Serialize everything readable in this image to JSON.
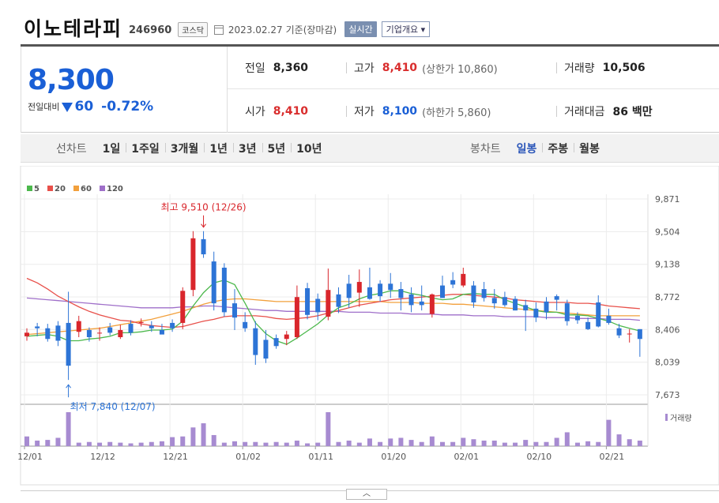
{
  "header": {
    "name": "이노테라피",
    "code": "246960",
    "market": "코스닥",
    "date": "2023.02.27",
    "basis": "기준(장마감)",
    "realtime_label": "실시간",
    "company_label": "기업개요"
  },
  "quote": {
    "price": "8,300",
    "change_label": "전일대비",
    "change": "60",
    "change_pct": "-0.72%",
    "prev_close_label": "전일",
    "prev_close": "8,360",
    "high_label": "고가",
    "high": "8,410",
    "upper_limit_label": "(상한가 10,860)",
    "volume_label": "거래량",
    "volume": "10,506",
    "open_label": "시가",
    "open": "8,410",
    "low_label": "저가",
    "low": "8,100",
    "lower_limit_label": "(하한가 5,860)",
    "amount_label": "거래대금",
    "amount": "86 백만"
  },
  "tabs": {
    "line_label": "선차트",
    "line_items": [
      "1일",
      "1주일",
      "3개월",
      "1년",
      "3년",
      "5년",
      "10년"
    ],
    "candle_label": "봉차트",
    "candle_items": [
      "일봉",
      "주봉",
      "월봉"
    ],
    "candle_selected": 0
  },
  "chart_data": {
    "type": "candlestick",
    "legend": [
      {
        "name": "5",
        "color": "#4cb84c"
      },
      {
        "name": "20",
        "color": "#e8504a"
      },
      {
        "name": "60",
        "color": "#f2a03c"
      },
      {
        "name": "120",
        "color": "#9f6fc9"
      }
    ],
    "y_ticks": [
      "9,871",
      "9,504",
      "9,138",
      "8,772",
      "8,406",
      "8,039",
      "7,673"
    ],
    "ylim": [
      7673,
      9871
    ],
    "x_ticks": [
      {
        "label": "12/01",
        "index": 0
      },
      {
        "label": "12/12",
        "index": 7
      },
      {
        "label": "12/21",
        "index": 14
      },
      {
        "label": "01/02",
        "index": 21
      },
      {
        "label": "01/11",
        "index": 28
      },
      {
        "label": "01/20",
        "index": 35
      },
      {
        "label": "02/01",
        "index": 42
      },
      {
        "label": "02/10",
        "index": 49
      },
      {
        "label": "02/21",
        "index": 56
      }
    ],
    "annotations": {
      "high_text": "최고 9,510 (12/26)",
      "high_index": 17,
      "high_value": 9510,
      "low_text": "최저 7,840 (12/07)",
      "low_index": 4,
      "low_value": 7840
    },
    "volume_label": "거래량",
    "candles": [
      {
        "o": 8330,
        "h": 8420,
        "l": 8280,
        "c": 8370
      },
      {
        "o": 8440,
        "h": 8480,
        "l": 8330,
        "c": 8420
      },
      {
        "o": 8420,
        "h": 8470,
        "l": 8270,
        "c": 8300
      },
      {
        "o": 8450,
        "h": 8500,
        "l": 8220,
        "c": 8280
      },
      {
        "o": 8480,
        "h": 8830,
        "l": 7840,
        "c": 8000
      },
      {
        "o": 8380,
        "h": 8560,
        "l": 8320,
        "c": 8500
      },
      {
        "o": 8400,
        "h": 8430,
        "l": 8270,
        "c": 8320
      },
      {
        "o": 8370,
        "h": 8430,
        "l": 8280,
        "c": 8370
      },
      {
        "o": 8430,
        "h": 8480,
        "l": 8340,
        "c": 8370
      },
      {
        "o": 8320,
        "h": 8460,
        "l": 8300,
        "c": 8400
      },
      {
        "o": 8470,
        "h": 8510,
        "l": 8340,
        "c": 8370
      },
      {
        "o": 8480,
        "h": 8530,
        "l": 8440,
        "c": 8490
      },
      {
        "o": 8450,
        "h": 8500,
        "l": 8380,
        "c": 8420
      },
      {
        "o": 8400,
        "h": 8470,
        "l": 8360,
        "c": 8350
      },
      {
        "o": 8480,
        "h": 8520,
        "l": 8380,
        "c": 8420
      },
      {
        "o": 8480,
        "h": 8880,
        "l": 8410,
        "c": 8840
      },
      {
        "o": 8850,
        "h": 9510,
        "l": 8780,
        "c": 9430
      },
      {
        "o": 9420,
        "h": 9510,
        "l": 9210,
        "c": 9250
      },
      {
        "o": 9170,
        "h": 9280,
        "l": 8620,
        "c": 8700
      },
      {
        "o": 9100,
        "h": 9150,
        "l": 8550,
        "c": 8600
      },
      {
        "o": 8700,
        "h": 8860,
        "l": 8400,
        "c": 8540
      },
      {
        "o": 8490,
        "h": 8600,
        "l": 8380,
        "c": 8420
      },
      {
        "o": 8420,
        "h": 8500,
        "l": 8010,
        "c": 8120
      },
      {
        "o": 8290,
        "h": 8400,
        "l": 8030,
        "c": 8080
      },
      {
        "o": 8310,
        "h": 8350,
        "l": 8190,
        "c": 8220
      },
      {
        "o": 8300,
        "h": 8390,
        "l": 8230,
        "c": 8350
      },
      {
        "o": 8320,
        "h": 8900,
        "l": 8300,
        "c": 8770
      },
      {
        "o": 8870,
        "h": 8930,
        "l": 8520,
        "c": 8570
      },
      {
        "o": 8750,
        "h": 8810,
        "l": 8510,
        "c": 8600
      },
      {
        "o": 8550,
        "h": 9090,
        "l": 8510,
        "c": 8850
      },
      {
        "o": 8800,
        "h": 8880,
        "l": 8590,
        "c": 8660
      },
      {
        "o": 8920,
        "h": 9020,
        "l": 8650,
        "c": 8760
      },
      {
        "o": 8820,
        "h": 9080,
        "l": 8660,
        "c": 8940
      },
      {
        "o": 8880,
        "h": 9100,
        "l": 8740,
        "c": 8750
      },
      {
        "o": 8920,
        "h": 8960,
        "l": 8720,
        "c": 8780
      },
      {
        "o": 8920,
        "h": 9040,
        "l": 8760,
        "c": 8850
      },
      {
        "o": 8860,
        "h": 8940,
        "l": 8620,
        "c": 8760
      },
      {
        "o": 8800,
        "h": 8880,
        "l": 8600,
        "c": 8680
      },
      {
        "o": 8720,
        "h": 8900,
        "l": 8620,
        "c": 8680
      },
      {
        "o": 8580,
        "h": 8810,
        "l": 8540,
        "c": 8800
      },
      {
        "o": 8900,
        "h": 9010,
        "l": 8760,
        "c": 8760
      },
      {
        "o": 8960,
        "h": 9050,
        "l": 8870,
        "c": 8910
      },
      {
        "o": 8900,
        "h": 9100,
        "l": 8880,
        "c": 9030
      },
      {
        "o": 8900,
        "h": 8950,
        "l": 8650,
        "c": 8710
      },
      {
        "o": 8860,
        "h": 8940,
        "l": 8720,
        "c": 8760
      },
      {
        "o": 8760,
        "h": 8860,
        "l": 8640,
        "c": 8700
      },
      {
        "o": 8770,
        "h": 8830,
        "l": 8660,
        "c": 8680
      },
      {
        "o": 8750,
        "h": 8780,
        "l": 8620,
        "c": 8620
      },
      {
        "o": 8680,
        "h": 8740,
        "l": 8390,
        "c": 8620
      },
      {
        "o": 8640,
        "h": 8710,
        "l": 8490,
        "c": 8540
      },
      {
        "o": 8720,
        "h": 8770,
        "l": 8520,
        "c": 8600
      },
      {
        "o": 8780,
        "h": 8800,
        "l": 8620,
        "c": 8740
      },
      {
        "o": 8700,
        "h": 8740,
        "l": 8450,
        "c": 8500
      },
      {
        "o": 8560,
        "h": 8600,
        "l": 8470,
        "c": 8510
      },
      {
        "o": 8490,
        "h": 8540,
        "l": 8400,
        "c": 8410
      },
      {
        "o": 8710,
        "h": 8790,
        "l": 8430,
        "c": 8440
      },
      {
        "o": 8560,
        "h": 8640,
        "l": 8460,
        "c": 8480
      },
      {
        "o": 8420,
        "h": 8470,
        "l": 8310,
        "c": 8340
      },
      {
        "o": 8360,
        "h": 8410,
        "l": 8260,
        "c": 8360
      },
      {
        "o": 8410,
        "h": 8410,
        "l": 8100,
        "c": 8300
      }
    ],
    "ma5": [
      8330,
      8340,
      8350,
      8330,
      8280,
      8280,
      8300,
      8310,
      8330,
      8370,
      8370,
      8380,
      8400,
      8400,
      8410,
      8500,
      8670,
      8820,
      8930,
      8960,
      8910,
      8700,
      8480,
      8360,
      8280,
      8240,
      8310,
      8390,
      8470,
      8570,
      8650,
      8690,
      8750,
      8790,
      8810,
      8840,
      8840,
      8810,
      8790,
      8760,
      8740,
      8750,
      8800,
      8810,
      8800,
      8800,
      8740,
      8700,
      8660,
      8620,
      8600,
      8600,
      8570,
      8570,
      8560,
      8530,
      8500,
      8450,
      8420,
      8390
    ],
    "ma20": [
      8980,
      8930,
      8860,
      8780,
      8720,
      8660,
      8610,
      8570,
      8540,
      8510,
      8500,
      8470,
      8450,
      8440,
      8430,
      8440,
      8470,
      8500,
      8520,
      8550,
      8560,
      8560,
      8560,
      8550,
      8530,
      8520,
      8530,
      8540,
      8560,
      8590,
      8620,
      8650,
      8680,
      8700,
      8720,
      8740,
      8750,
      8760,
      8770,
      8780,
      8790,
      8800,
      8800,
      8790,
      8780,
      8770,
      8760,
      8740,
      8730,
      8720,
      8710,
      8710,
      8710,
      8700,
      8700,
      8690,
      8670,
      8660,
      8650,
      8640
    ],
    "ma60": [
      8350,
      8360,
      8370,
      8380,
      8390,
      8400,
      8410,
      8420,
      8440,
      8460,
      8480,
      8500,
      8520,
      8550,
      8580,
      8610,
      8650,
      8690,
      8720,
      8740,
      8750,
      8750,
      8740,
      8730,
      8720,
      8720,
      8720,
      8720,
      8720,
      8720,
      8720,
      8720,
      8720,
      8720,
      8720,
      8710,
      8710,
      8710,
      8700,
      8700,
      8700,
      8690,
      8690,
      8680,
      8670,
      8660,
      8650,
      8640,
      8630,
      8620,
      8610,
      8600,
      8590,
      8580,
      8570,
      8560,
      8560,
      8560,
      8560,
      8560
    ],
    "ma120": [
      8760,
      8750,
      8740,
      8730,
      8720,
      8710,
      8700,
      8690,
      8680,
      8670,
      8660,
      8650,
      8650,
      8650,
      8650,
      8660,
      8660,
      8670,
      8670,
      8660,
      8650,
      8640,
      8630,
      8620,
      8620,
      8610,
      8610,
      8610,
      8610,
      8610,
      8610,
      8600,
      8600,
      8600,
      8590,
      8590,
      8590,
      8580,
      8580,
      8580,
      8570,
      8570,
      8570,
      8560,
      8560,
      8560,
      8550,
      8550,
      8550,
      8550,
      8540,
      8540,
      8540,
      8530,
      8530,
      8530,
      8520,
      8520,
      8520,
      8510
    ],
    "volume": [
      14,
      8,
      9,
      12,
      49,
      5,
      6,
      5,
      6,
      5,
      4,
      5,
      6,
      7,
      13,
      14,
      27,
      33,
      16,
      5,
      7,
      6,
      6,
      5,
      6,
      5,
      8,
      4,
      5,
      49,
      6,
      8,
      5,
      11,
      6,
      11,
      12,
      9,
      6,
      14,
      6,
      6,
      12,
      10,
      8,
      8,
      5,
      5,
      9,
      6,
      6,
      12,
      20,
      5,
      7,
      6,
      38,
      17,
      10,
      8
    ]
  }
}
